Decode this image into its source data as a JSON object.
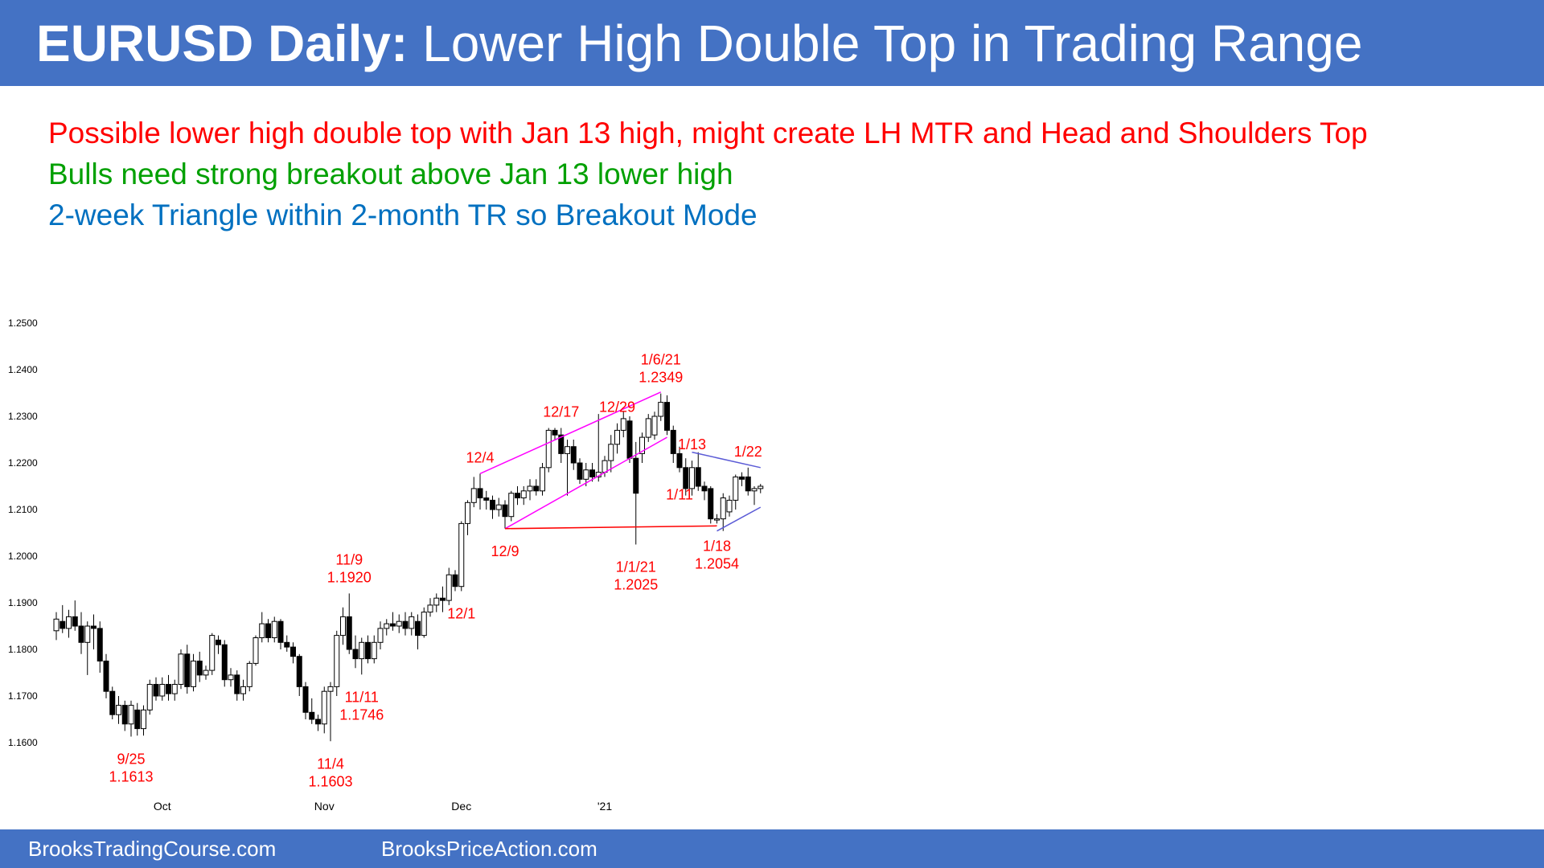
{
  "header": {
    "title_bold": "EURUSD Daily:",
    "title_rest": "Lower High Double Top in Trading Range",
    "background": "#4472c4"
  },
  "notes": [
    {
      "text": "Possible lower high double top with Jan 13 high, might create LH MTR and Head and Shoulders Top",
      "color": "#ff0000"
    },
    {
      "text": "Bulls need strong breakout above Jan 13 lower high",
      "color": "#00a000"
    },
    {
      "text": "2-week Triangle within 2-month TR so Breakout Mode",
      "color": "#0070c0"
    }
  ],
  "footer": {
    "left": "BrooksTradingCourse.com",
    "right": "BrooksPriceAction.com"
  },
  "chart_data": {
    "type": "candlestick",
    "title": "",
    "ylim": [
      1.156,
      1.256
    ],
    "yticks": [
      "1.1600",
      "1.1700",
      "1.1800",
      "1.1900",
      "1.2000",
      "1.2100",
      "1.2200",
      "1.2300",
      "1.2400",
      "1.2500"
    ],
    "xticks": [
      {
        "label": "Oct",
        "bar": 17
      },
      {
        "label": "Nov",
        "bar": 43
      },
      {
        "label": "Dec",
        "bar": 65
      },
      {
        "label": "'21",
        "bar": 88
      }
    ],
    "colors": {
      "bull": "#ffffff",
      "bear": "#000000",
      "wick": "#000000",
      "annotation": "#ff0000",
      "channel": "#ff00ff",
      "triangle": "#5b5bd6"
    },
    "candles": [
      {
        "o": 1.184,
        "h": 1.188,
        "l": 1.182,
        "c": 1.1865
      },
      {
        "o": 1.186,
        "h": 1.1895,
        "l": 1.1835,
        "c": 1.1845
      },
      {
        "o": 1.1845,
        "h": 1.1885,
        "l": 1.1825,
        "c": 1.187
      },
      {
        "o": 1.187,
        "h": 1.1905,
        "l": 1.184,
        "c": 1.185
      },
      {
        "o": 1.185,
        "h": 1.188,
        "l": 1.179,
        "c": 1.1815
      },
      {
        "o": 1.1815,
        "h": 1.186,
        "l": 1.1745,
        "c": 1.185
      },
      {
        "o": 1.185,
        "h": 1.1875,
        "l": 1.18,
        "c": 1.1845
      },
      {
        "o": 1.1845,
        "h": 1.186,
        "l": 1.175,
        "c": 1.1775
      },
      {
        "o": 1.1775,
        "h": 1.179,
        "l": 1.1695,
        "c": 1.171
      },
      {
        "o": 1.171,
        "h": 1.172,
        "l": 1.165,
        "c": 1.166
      },
      {
        "o": 1.166,
        "h": 1.17,
        "l": 1.164,
        "c": 1.168
      },
      {
        "o": 1.168,
        "h": 1.169,
        "l": 1.1625,
        "c": 1.164
      },
      {
        "o": 1.164,
        "h": 1.169,
        "l": 1.1613,
        "c": 1.168
      },
      {
        "o": 1.167,
        "h": 1.1685,
        "l": 1.1615,
        "c": 1.163
      },
      {
        "o": 1.163,
        "h": 1.168,
        "l": 1.1615,
        "c": 1.167
      },
      {
        "o": 1.167,
        "h": 1.1735,
        "l": 1.166,
        "c": 1.1725
      },
      {
        "o": 1.1725,
        "h": 1.174,
        "l": 1.169,
        "c": 1.17
      },
      {
        "o": 1.17,
        "h": 1.174,
        "l": 1.169,
        "c": 1.1725
      },
      {
        "o": 1.1725,
        "h": 1.1745,
        "l": 1.169,
        "c": 1.1705
      },
      {
        "o": 1.1705,
        "h": 1.1735,
        "l": 1.169,
        "c": 1.1725
      },
      {
        "o": 1.1725,
        "h": 1.18,
        "l": 1.1715,
        "c": 1.179
      },
      {
        "o": 1.179,
        "h": 1.181,
        "l": 1.1705,
        "c": 1.172
      },
      {
        "o": 1.172,
        "h": 1.179,
        "l": 1.171,
        "c": 1.1775
      },
      {
        "o": 1.1775,
        "h": 1.1795,
        "l": 1.173,
        "c": 1.1745
      },
      {
        "o": 1.1745,
        "h": 1.1765,
        "l": 1.1735,
        "c": 1.1755
      },
      {
        "o": 1.1755,
        "h": 1.1835,
        "l": 1.1745,
        "c": 1.183
      },
      {
        "o": 1.182,
        "h": 1.183,
        "l": 1.179,
        "c": 1.181
      },
      {
        "o": 1.181,
        "h": 1.182,
        "l": 1.172,
        "c": 1.1735
      },
      {
        "o": 1.1735,
        "h": 1.176,
        "l": 1.172,
        "c": 1.1745
      },
      {
        "o": 1.1745,
        "h": 1.1755,
        "l": 1.169,
        "c": 1.1705
      },
      {
        "o": 1.1705,
        "h": 1.1735,
        "l": 1.169,
        "c": 1.172
      },
      {
        "o": 1.172,
        "h": 1.1775,
        "l": 1.171,
        "c": 1.177
      },
      {
        "o": 1.177,
        "h": 1.183,
        "l": 1.1765,
        "c": 1.1825
      },
      {
        "o": 1.1825,
        "h": 1.188,
        "l": 1.1815,
        "c": 1.1855
      },
      {
        "o": 1.1855,
        "h": 1.1865,
        "l": 1.1815,
        "c": 1.1825
      },
      {
        "o": 1.1825,
        "h": 1.187,
        "l": 1.1815,
        "c": 1.186
      },
      {
        "o": 1.186,
        "h": 1.1865,
        "l": 1.18,
        "c": 1.1815
      },
      {
        "o": 1.1815,
        "h": 1.183,
        "l": 1.1795,
        "c": 1.1805
      },
      {
        "o": 1.1805,
        "h": 1.1815,
        "l": 1.177,
        "c": 1.1785
      },
      {
        "o": 1.1785,
        "h": 1.179,
        "l": 1.17,
        "c": 1.172
      },
      {
        "o": 1.172,
        "h": 1.173,
        "l": 1.165,
        "c": 1.1665
      },
      {
        "o": 1.1665,
        "h": 1.1695,
        "l": 1.164,
        "c": 1.165
      },
      {
        "o": 1.165,
        "h": 1.166,
        "l": 1.1625,
        "c": 1.164
      },
      {
        "o": 1.164,
        "h": 1.172,
        "l": 1.162,
        "c": 1.171
      },
      {
        "o": 1.171,
        "h": 1.173,
        "l": 1.1603,
        "c": 1.172
      },
      {
        "o": 1.172,
        "h": 1.184,
        "l": 1.17,
        "c": 1.183
      },
      {
        "o": 1.183,
        "h": 1.189,
        "l": 1.181,
        "c": 1.187
      },
      {
        "o": 1.187,
        "h": 1.192,
        "l": 1.179,
        "c": 1.18
      },
      {
        "o": 1.18,
        "h": 1.183,
        "l": 1.176,
        "c": 1.178
      },
      {
        "o": 1.178,
        "h": 1.1825,
        "l": 1.1746,
        "c": 1.1815
      },
      {
        "o": 1.1815,
        "h": 1.183,
        "l": 1.177,
        "c": 1.178
      },
      {
        "o": 1.178,
        "h": 1.183,
        "l": 1.177,
        "c": 1.1815
      },
      {
        "o": 1.1815,
        "h": 1.186,
        "l": 1.18,
        "c": 1.1845
      },
      {
        "o": 1.1845,
        "h": 1.1865,
        "l": 1.183,
        "c": 1.1855
      },
      {
        "o": 1.1855,
        "h": 1.188,
        "l": 1.184,
        "c": 1.185
      },
      {
        "o": 1.185,
        "h": 1.1875,
        "l": 1.1835,
        "c": 1.186
      },
      {
        "o": 1.186,
        "h": 1.188,
        "l": 1.183,
        "c": 1.1845
      },
      {
        "o": 1.1845,
        "h": 1.188,
        "l": 1.183,
        "c": 1.187
      },
      {
        "o": 1.186,
        "h": 1.1875,
        "l": 1.18,
        "c": 1.183
      },
      {
        "o": 1.183,
        "h": 1.189,
        "l": 1.1825,
        "c": 1.188
      },
      {
        "o": 1.188,
        "h": 1.191,
        "l": 1.187,
        "c": 1.1895
      },
      {
        "o": 1.1895,
        "h": 1.192,
        "l": 1.188,
        "c": 1.191
      },
      {
        "o": 1.191,
        "h": 1.1935,
        "l": 1.188,
        "c": 1.1905
      },
      {
        "o": 1.1905,
        "h": 1.1975,
        "l": 1.1895,
        "c": 1.196
      },
      {
        "o": 1.196,
        "h": 1.197,
        "l": 1.1925,
        "c": 1.1935
      },
      {
        "o": 1.1935,
        "h": 1.2075,
        "l": 1.1925,
        "c": 1.207
      },
      {
        "o": 1.207,
        "h": 1.212,
        "l": 1.2045,
        "c": 1.2115
      },
      {
        "o": 1.2115,
        "h": 1.217,
        "l": 1.2105,
        "c": 1.2145
      },
      {
        "o": 1.2145,
        "h": 1.2177,
        "l": 1.21,
        "c": 1.2125
      },
      {
        "o": 1.2125,
        "h": 1.214,
        "l": 1.21,
        "c": 1.212
      },
      {
        "o": 1.212,
        "h": 1.213,
        "l": 1.208,
        "c": 1.21
      },
      {
        "o": 1.21,
        "h": 1.2125,
        "l": 1.2085,
        "c": 1.211
      },
      {
        "o": 1.211,
        "h": 1.212,
        "l": 1.2059,
        "c": 1.2085
      },
      {
        "o": 1.2085,
        "h": 1.214,
        "l": 1.2075,
        "c": 1.2135
      },
      {
        "o": 1.2135,
        "h": 1.215,
        "l": 1.211,
        "c": 1.2125
      },
      {
        "o": 1.2125,
        "h": 1.215,
        "l": 1.211,
        "c": 1.214
      },
      {
        "o": 1.214,
        "h": 1.2165,
        "l": 1.212,
        "c": 1.215
      },
      {
        "o": 1.215,
        "h": 1.2165,
        "l": 1.213,
        "c": 1.214
      },
      {
        "o": 1.214,
        "h": 1.22,
        "l": 1.213,
        "c": 1.219
      },
      {
        "o": 1.219,
        "h": 1.2275,
        "l": 1.218,
        "c": 1.227
      },
      {
        "o": 1.227,
        "h": 1.2275,
        "l": 1.225,
        "c": 1.226
      },
      {
        "o": 1.226,
        "h": 1.2275,
        "l": 1.22,
        "c": 1.222
      },
      {
        "o": 1.222,
        "h": 1.225,
        "l": 1.213,
        "c": 1.2235
      },
      {
        "o": 1.2235,
        "h": 1.225,
        "l": 1.2185,
        "c": 1.22
      },
      {
        "o": 1.22,
        "h": 1.221,
        "l": 1.2155,
        "c": 1.2165
      },
      {
        "o": 1.2165,
        "h": 1.22,
        "l": 1.215,
        "c": 1.2185
      },
      {
        "o": 1.2185,
        "h": 1.22,
        "l": 1.216,
        "c": 1.217
      },
      {
        "o": 1.217,
        "h": 1.2305,
        "l": 1.216,
        "c": 1.218
      },
      {
        "o": 1.218,
        "h": 1.2215,
        "l": 1.217,
        "c": 1.2205
      },
      {
        "o": 1.2205,
        "h": 1.226,
        "l": 1.218,
        "c": 1.224
      },
      {
        "o": 1.224,
        "h": 1.2285,
        "l": 1.222,
        "c": 1.227
      },
      {
        "o": 1.227,
        "h": 1.231,
        "l": 1.2255,
        "c": 1.2295
      },
      {
        "o": 1.229,
        "h": 1.23,
        "l": 1.22,
        "c": 1.221
      },
      {
        "o": 1.221,
        "h": 1.2245,
        "l": 1.2025,
        "c": 1.2135
      },
      {
        "o": 1.222,
        "h": 1.2265,
        "l": 1.22,
        "c": 1.2255
      },
      {
        "o": 1.2255,
        "h": 1.2305,
        "l": 1.2245,
        "c": 1.2295
      },
      {
        "o": 1.226,
        "h": 1.231,
        "l": 1.225,
        "c": 1.23
      },
      {
        "o": 1.23,
        "h": 1.2349,
        "l": 1.229,
        "c": 1.233
      },
      {
        "o": 1.233,
        "h": 1.2345,
        "l": 1.226,
        "c": 1.227
      },
      {
        "o": 1.227,
        "h": 1.228,
        "l": 1.22,
        "c": 1.222
      },
      {
        "o": 1.222,
        "h": 1.2235,
        "l": 1.218,
        "c": 1.219
      },
      {
        "o": 1.219,
        "h": 1.221,
        "l": 1.213,
        "c": 1.2145
      },
      {
        "o": 1.2145,
        "h": 1.2205,
        "l": 1.213,
        "c": 1.219
      },
      {
        "o": 1.219,
        "h": 1.2223,
        "l": 1.214,
        "c": 1.215
      },
      {
        "o": 1.215,
        "h": 1.216,
        "l": 1.212,
        "c": 1.214
      },
      {
        "o": 1.2145,
        "h": 1.215,
        "l": 1.207,
        "c": 1.208
      },
      {
        "o": 1.208,
        "h": 1.209,
        "l": 1.207,
        "c": 1.208
      },
      {
        "o": 1.208,
        "h": 1.2135,
        "l": 1.2054,
        "c": 1.2125
      },
      {
        "o": 1.2095,
        "h": 1.213,
        "l": 1.2085,
        "c": 1.212
      },
      {
        "o": 1.212,
        "h": 1.2175,
        "l": 1.21,
        "c": 1.217
      },
      {
        "o": 1.217,
        "h": 1.218,
        "l": 1.215,
        "c": 1.2165
      },
      {
        "o": 1.217,
        "h": 1.219,
        "l": 1.213,
        "c": 1.214
      },
      {
        "o": 1.214,
        "h": 1.215,
        "l": 1.211,
        "c": 1.2145
      },
      {
        "o": 1.2145,
        "h": 1.2155,
        "l": 1.2135,
        "c": 1.215
      }
    ],
    "annotations": [
      {
        "bar": 12,
        "pos": "below",
        "lines": [
          "9/25",
          "1.1613"
        ]
      },
      {
        "bar": 44,
        "pos": "below",
        "lines": [
          "11/4",
          "1.1603"
        ]
      },
      {
        "bar": 47,
        "pos": "above",
        "lines": [
          "11/9",
          "1.1920"
        ]
      },
      {
        "bar": 49,
        "pos": "below",
        "lines": [
          "11/11",
          "1.1746"
        ]
      },
      {
        "bar": 65,
        "pos": "below",
        "lines": [
          "12/1"
        ]
      },
      {
        "bar": 68,
        "pos": "above",
        "lines": [
          "12/4"
        ]
      },
      {
        "bar": 72,
        "pos": "below",
        "lines": [
          "12/9"
        ]
      },
      {
        "bar": 81,
        "pos": "above",
        "lines": [
          "12/17"
        ]
      },
      {
        "bar": 90,
        "pos": "above",
        "lines": [
          "12/29"
        ]
      },
      {
        "bar": 93,
        "pos": "below",
        "lines": [
          "1/1/21",
          "1.2025"
        ]
      },
      {
        "bar": 97,
        "pos": "above",
        "lines": [
          "1/6/21",
          "1.2349"
        ]
      },
      {
        "bar": 102,
        "pos": "above",
        "lines": [
          "1/13"
        ]
      },
      {
        "bar": 100,
        "pos": "below",
        "lines": [
          "1/11"
        ]
      },
      {
        "bar": 106,
        "pos": "below",
        "lines": [
          "1/18",
          "1.2054"
        ]
      },
      {
        "bar": 111,
        "pos": "above",
        "lines": [
          "1/22"
        ]
      }
    ],
    "lines": [
      {
        "name": "channel-top",
        "color": "magenta",
        "from": {
          "bar": 68,
          "price": 1.2177
        },
        "to": {
          "bar": 97,
          "price": 1.2352
        }
      },
      {
        "name": "channel-bottom",
        "color": "magenta",
        "from": {
          "bar": 72,
          "price": 1.2059
        },
        "to": {
          "bar": 98,
          "price": 1.2255
        }
      },
      {
        "name": "neckline",
        "color": "red",
        "from": {
          "bar": 72,
          "price": 1.2059
        },
        "to": {
          "bar": 106,
          "price": 1.2065
        }
      },
      {
        "name": "triangle-top",
        "color": "blue",
        "from": {
          "bar": 102,
          "price": 1.2223
        },
        "to": {
          "bar": 113,
          "price": 1.219
        }
      },
      {
        "name": "triangle-bottom",
        "color": "blue",
        "from": {
          "bar": 106,
          "price": 1.2054
        },
        "to": {
          "bar": 113,
          "price": 1.2105
        }
      }
    ]
  }
}
